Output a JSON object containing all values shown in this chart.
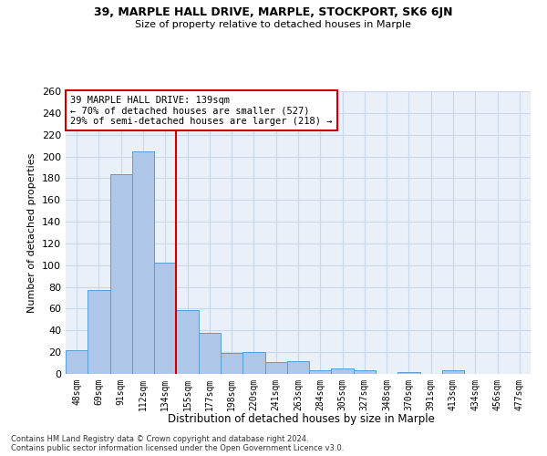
{
  "title1": "39, MARPLE HALL DRIVE, MARPLE, STOCKPORT, SK6 6JN",
  "title2": "Size of property relative to detached houses in Marple",
  "xlabel": "Distribution of detached houses by size in Marple",
  "ylabel": "Number of detached properties",
  "categories": [
    "48sqm",
    "69sqm",
    "91sqm",
    "112sqm",
    "134sqm",
    "155sqm",
    "177sqm",
    "198sqm",
    "220sqm",
    "241sqm",
    "263sqm",
    "284sqm",
    "305sqm",
    "327sqm",
    "348sqm",
    "370sqm",
    "391sqm",
    "413sqm",
    "434sqm",
    "456sqm",
    "477sqm"
  ],
  "values": [
    22,
    77,
    184,
    205,
    102,
    59,
    38,
    19,
    20,
    11,
    12,
    3,
    5,
    3,
    0,
    2,
    0,
    3,
    0,
    0,
    0
  ],
  "bar_color": "#aec6e8",
  "bar_edge_color": "#5b9bd5",
  "vline_x_index": 4,
  "vline_color": "#cc0000",
  "annotation_text": "39 MARPLE HALL DRIVE: 139sqm\n← 70% of detached houses are smaller (527)\n29% of semi-detached houses are larger (218) →",
  "annotation_box_color": "#ffffff",
  "annotation_box_edge_color": "#cc0000",
  "grid_color": "#c8d8e8",
  "background_color": "#eaf0f8",
  "footer1": "Contains HM Land Registry data © Crown copyright and database right 2024.",
  "footer2": "Contains public sector information licensed under the Open Government Licence v3.0.",
  "ylim": [
    0,
    260
  ],
  "yticks": [
    0,
    20,
    40,
    60,
    80,
    100,
    120,
    140,
    160,
    180,
    200,
    220,
    240,
    260
  ]
}
